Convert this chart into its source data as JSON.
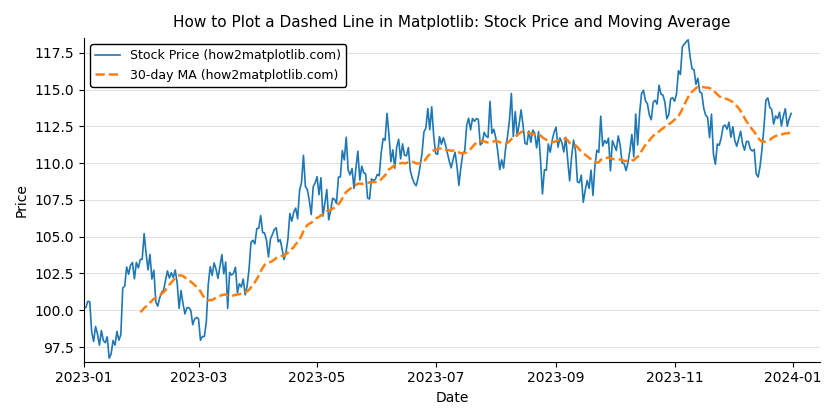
{
  "title": "How to Plot a Dashed Line in Matplotlib: Stock Price and Moving Average",
  "xlabel": "Date",
  "ylabel": "Price",
  "stock_label": "Stock Price (how2matplotlib.com)",
  "ma_label": "30-day MA (how2matplotlib.com)",
  "stock_color": "#1f77b4",
  "ma_color": "#ff7f0e",
  "ma_linestyle": "--",
  "stock_linewidth": 1.2,
  "ma_linewidth": 1.8,
  "ylim": [
    96.5,
    118.5
  ],
  "figsize": [
    8.4,
    4.2
  ],
  "dpi": 100,
  "seed": 42,
  "n_days": 365
}
